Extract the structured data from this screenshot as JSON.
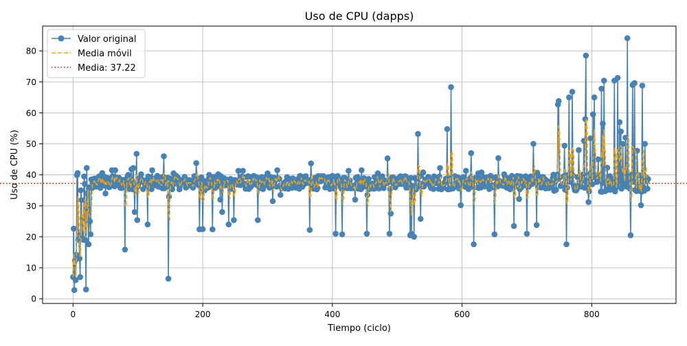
{
  "chart_data": {
    "type": "line",
    "title": "Uso de CPU (dapps)",
    "xlabel": "Tiempo (ciclo)",
    "ylabel": "Uso de CPU (%)",
    "xlim": [
      -47,
      930
    ],
    "ylim": [
      -1.5,
      88
    ],
    "xticks": [
      0,
      200,
      400,
      600,
      800
    ],
    "yticks": [
      0,
      10,
      20,
      30,
      40,
      50,
      60,
      70,
      80
    ],
    "grid": true,
    "legend_position": "top-left",
    "n_points": 888,
    "series": [
      {
        "name": "Valor original",
        "style": "line-marker",
        "color": "#4682b4",
        "baseline": 37.5,
        "spread": 2.2,
        "x": [],
        "y": []
      },
      {
        "name": "Media móvil",
        "style": "dashed",
        "color": "#ffa500",
        "window": 3
      },
      {
        "name": "Media: 37.22",
        "style": "dotted-hline",
        "color": "#ff0000",
        "value": 37.22
      }
    ],
    "anchors": [
      [
        0,
        7
      ],
      [
        2,
        2.8
      ],
      [
        3,
        12.3
      ],
      [
        4,
        6
      ],
      [
        5,
        14.2
      ],
      [
        7,
        40.6
      ],
      [
        8,
        19
      ],
      [
        9,
        20.5
      ],
      [
        10,
        13
      ],
      [
        11,
        7
      ],
      [
        12,
        35
      ],
      [
        14,
        19.5
      ],
      [
        15,
        26
      ],
      [
        16,
        19
      ],
      [
        17,
        39.5
      ],
      [
        19,
        19
      ],
      [
        20,
        3
      ],
      [
        21,
        42.2
      ],
      [
        22,
        34
      ],
      [
        23,
        29
      ],
      [
        24,
        17.6
      ],
      [
        25,
        36
      ],
      [
        26,
        25
      ],
      [
        27,
        20.8
      ],
      [
        28,
        38.5
      ],
      [
        30,
        38
      ],
      [
        40,
        39.5
      ],
      [
        45,
        40.6
      ],
      [
        50,
        34
      ],
      [
        60,
        41.5
      ],
      [
        65,
        41.5
      ],
      [
        80,
        15.9
      ],
      [
        85,
        40
      ],
      [
        90,
        41.8
      ],
      [
        93,
        42.2
      ],
      [
        95,
        28
      ],
      [
        98,
        46.8
      ],
      [
        99,
        25.4
      ],
      [
        105,
        40.2
      ],
      [
        115,
        24
      ],
      [
        122,
        41.5
      ],
      [
        140,
        46
      ],
      [
        147,
        6.5
      ],
      [
        148,
        33
      ],
      [
        155,
        40.5
      ],
      [
        160,
        38.5
      ],
      [
        190,
        43.8
      ],
      [
        195,
        22.4
      ],
      [
        200,
        22.5
      ],
      [
        203,
        35
      ],
      [
        210,
        40
      ],
      [
        215,
        22.4
      ],
      [
        224,
        40.2
      ],
      [
        227,
        32
      ],
      [
        230,
        28
      ],
      [
        240,
        24
      ],
      [
        248,
        25.4
      ],
      [
        255,
        41.3
      ],
      [
        262,
        41.3
      ],
      [
        285,
        25.4
      ],
      [
        300,
        40.5
      ],
      [
        308,
        31.5
      ],
      [
        315,
        41.5
      ],
      [
        320,
        33.5
      ],
      [
        365,
        22.2
      ],
      [
        367,
        43.7
      ],
      [
        380,
        39.5
      ],
      [
        405,
        21
      ],
      [
        415,
        20.8
      ],
      [
        425,
        41.3
      ],
      [
        435,
        32
      ],
      [
        445,
        41.5
      ],
      [
        453,
        21
      ],
      [
        454,
        33.5
      ],
      [
        470,
        40.5
      ],
      [
        485,
        45.3
      ],
      [
        488,
        21
      ],
      [
        490,
        27.5
      ],
      [
        520,
        20.5
      ],
      [
        522,
        21
      ],
      [
        526,
        20
      ],
      [
        532,
        53.2
      ],
      [
        536,
        25.8
      ],
      [
        540,
        40.8
      ],
      [
        566,
        42.2
      ],
      [
        577,
        54.8
      ],
      [
        583,
        68.3
      ],
      [
        590,
        39
      ],
      [
        598,
        30.2
      ],
      [
        606,
        41.3
      ],
      [
        614,
        47
      ],
      [
        618,
        17.6
      ],
      [
        625,
        40.5
      ],
      [
        630,
        40.8
      ],
      [
        650,
        20.8
      ],
      [
        656,
        45.4
      ],
      [
        665,
        40.2
      ],
      [
        680,
        23.5
      ],
      [
        688,
        32.2
      ],
      [
        700,
        21
      ],
      [
        710,
        50
      ],
      [
        715,
        23.8
      ],
      [
        716,
        40.7
      ],
      [
        740,
        39
      ],
      [
        748,
        62.7
      ],
      [
        749,
        63.8
      ],
      [
        758,
        49.4
      ],
      [
        761,
        17.6
      ],
      [
        765,
        65
      ],
      [
        770,
        66.8
      ],
      [
        775,
        35
      ],
      [
        780,
        48
      ],
      [
        788,
        51
      ],
      [
        790,
        58
      ],
      [
        791,
        78.5
      ],
      [
        795,
        31.2
      ],
      [
        798,
        51.8
      ],
      [
        802,
        59.5
      ],
      [
        804,
        65
      ],
      [
        810,
        45
      ],
      [
        815,
        67.8
      ],
      [
        817,
        56.5
      ],
      [
        819,
        70.4
      ],
      [
        824,
        42.3
      ],
      [
        835,
        70.4
      ],
      [
        840,
        71.3
      ],
      [
        843,
        57
      ],
      [
        845,
        54
      ],
      [
        848,
        50
      ],
      [
        852,
        52
      ],
      [
        855,
        84.1
      ],
      [
        860,
        20.5
      ],
      [
        863,
        69
      ],
      [
        866,
        69.6
      ],
      [
        870,
        47.8
      ],
      [
        876,
        30.2
      ],
      [
        878,
        68.8
      ],
      [
        882,
        50
      ],
      [
        885,
        38
      ]
    ]
  }
}
